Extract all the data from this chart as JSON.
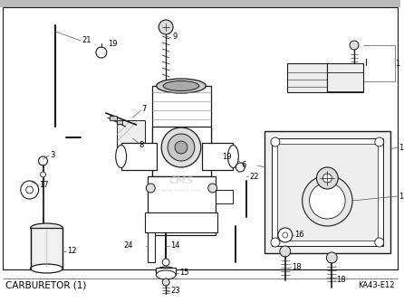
{
  "title": "CARBURETOR (1)",
  "part_code": "KA43-E12",
  "bg_color": "#ffffff",
  "line_color": "#1a1a1a",
  "text_color": "#000000",
  "watermark": "CMS",
  "watermark_url": "www.cmsnl.com",
  "fig_width": 4.46,
  "fig_height": 3.34,
  "dpi": 100
}
